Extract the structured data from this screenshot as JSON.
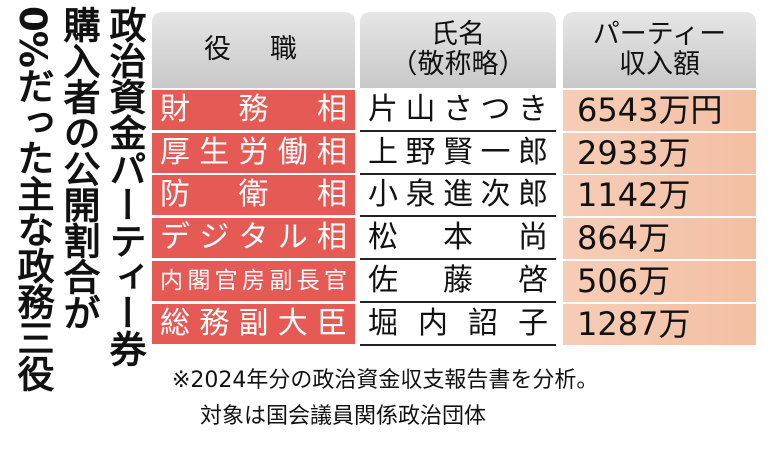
{
  "title": {
    "lines": [
      "政治資金パーティー券",
      "購入者の公開割合が",
      "0%だった主な政務三役"
    ]
  },
  "chart_data": {
    "type": "table",
    "columns": [
      "役　職",
      "氏名\n（敬称略）",
      "パーティー\n収入額"
    ],
    "header": {
      "role": "役　職",
      "name": "氏名",
      "name_sub": "（敬称略）",
      "amount": "パーティー",
      "amount_sub": "収入額"
    },
    "rows": [
      {
        "role": "財務相",
        "name": "片山さつき",
        "amount": "6543万円"
      },
      {
        "role": "厚生労働相",
        "name": "上野賢一郎",
        "amount": "2933万"
      },
      {
        "role": "防衛相",
        "name": "小泉進次郎",
        "amount": "1142万"
      },
      {
        "role": "デジタル相",
        "name": "松本　尚",
        "amount": "864万"
      },
      {
        "role": "内閣官房副長官",
        "name": "佐藤　啓",
        "amount": "506万"
      },
      {
        "role": "総務副大臣",
        "name": "堀内　詔子",
        "amount": "1287万"
      }
    ]
  },
  "footnote": {
    "line1": "※2024年分の政治資金収支報告書を分析。",
    "line2": "対象は国会議員関係政治団体"
  },
  "colors": {
    "role_bg": "#e65a55",
    "amount_bg": "#f4c6ad",
    "header_bg": "#d6d6d6"
  }
}
